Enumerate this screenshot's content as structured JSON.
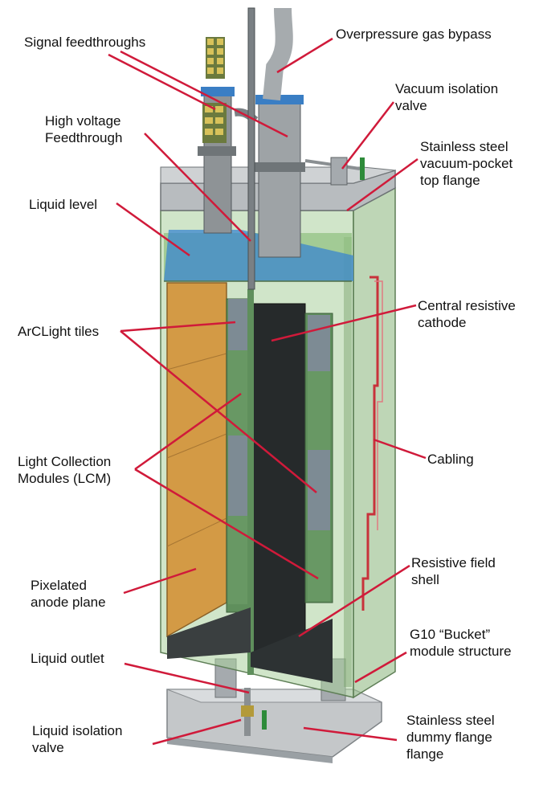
{
  "colors": {
    "leader": "#d01a3a",
    "anode": "#d39a45",
    "g10": "#9bc48e",
    "steel": "#b8bcbf",
    "liquid": "#3a86cf",
    "cathode": "#262a2b",
    "tiles": "#7d8b94",
    "lcm": "#5f8f5c",
    "valve_green": "#2e8b3a"
  },
  "labels": {
    "signal_feedthroughs": [
      "Signal feedthroughs"
    ],
    "overpressure_gas_bypass": [
      "Overpressure gas bypass"
    ],
    "vacuum_isolation_valve": [
      "Vacuum isolation",
      "valve"
    ],
    "high_voltage_feedthrough": [
      "High voltage",
      "Feedthrough"
    ],
    "stainless_top_flange": [
      "Stainless steel",
      "vacuum-pocket",
      "top flange"
    ],
    "liquid_level": [
      "Liquid level"
    ],
    "central_resistive_cathode": [
      "Central resistive",
      "cathode"
    ],
    "arclight_tiles": [
      "ArCLight tiles"
    ],
    "cabling": [
      "Cabling"
    ],
    "light_collection_modules": [
      "Light Collection",
      "Modules (LCM)"
    ],
    "resistive_field_shell": [
      "Resistive field",
      "shell"
    ],
    "pixelated_anode_plane": [
      "Pixelated",
      "anode plane"
    ],
    "g10_bucket": [
      "G10 “Bucket”",
      "module structure"
    ],
    "liquid_outlet": [
      "Liquid outlet"
    ],
    "liquid_isolation_valve": [
      "Liquid isolation",
      "valve"
    ],
    "stainless_dummy_flange": [
      "Stainless steel",
      "dummy flange",
      "flange"
    ]
  }
}
